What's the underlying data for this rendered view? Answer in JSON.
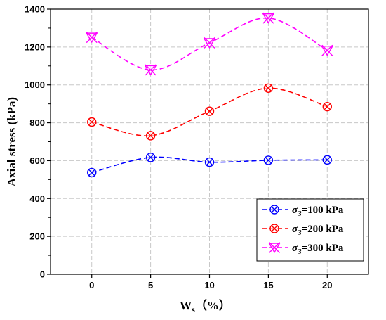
{
  "chart_data": {
    "type": "line",
    "xlabel_main": "W",
    "xlabel_sub": "s",
    "xlabel_unit": "（%）",
    "ylabel": "Axial stress (kPa)",
    "x": [
      0,
      5,
      10,
      15,
      20
    ],
    "x_ticks": [
      "0",
      "5",
      "10",
      "15",
      "20"
    ],
    "xlim": [
      -3.5,
      23.5
    ],
    "y_ticks": [
      "0",
      "200",
      "400",
      "600",
      "800",
      "1000",
      "1200",
      "1400"
    ],
    "ylim": [
      0,
      1400
    ],
    "grid": true,
    "legend_position": "bottom-right",
    "series": [
      {
        "name": "σ3=100 kPa",
        "legend_sigma": "σ",
        "legend_sub": "3",
        "legend_rest": "=100 kPa",
        "color": "#0000ff",
        "marker": "circle-x",
        "values": [
          537,
          617,
          592,
          602,
          604
        ]
      },
      {
        "name": "σ3=200 kPa",
        "legend_sigma": "σ",
        "legend_sub": "3",
        "legend_rest": "=200 kPa",
        "color": "#ff0000",
        "marker": "circle-x",
        "values": [
          804,
          732,
          861,
          983,
          885
        ]
      },
      {
        "name": "σ3=300 kPa",
        "legend_sigma": "σ",
        "legend_sub": "3",
        "legend_rest": "=300 kPa",
        "color": "#ff00ff",
        "marker": "triangle-x",
        "values": [
          1251,
          1079,
          1222,
          1353,
          1182
        ]
      }
    ]
  }
}
